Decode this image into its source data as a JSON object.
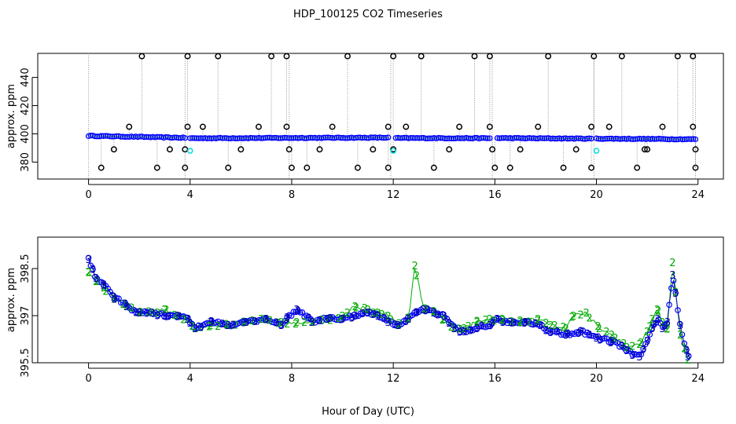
{
  "title": "HDP_100125  CO2 Timeseries",
  "xlabel": "Hour of Day (UTC)",
  "colors": {
    "blue": "#0000ff",
    "green": "#00aa00",
    "cyan": "#00dddd",
    "black": "#000000",
    "grey": "#999999",
    "dark_blue": "#0000aa"
  },
  "chart_data": [
    {
      "type": "scatter",
      "name": "top-panel",
      "ylabel": "approx. ppm",
      "xlim": [
        -2,
        25
      ],
      "ylim": [
        368,
        457
      ],
      "xticks": [
        0,
        4,
        8,
        12,
        16,
        20,
        24
      ],
      "yticks": [
        380,
        400,
        420,
        440
      ],
      "calibration_high": {
        "value": 455,
        "x": [
          2.1,
          3.9,
          5.1,
          7.2,
          7.8,
          10.2,
          12.0,
          13.1,
          15.2,
          15.8,
          18.1,
          19.9,
          21.0,
          23.2,
          23.8
        ]
      },
      "calibration_mid": {
        "value": 405,
        "x": [
          1.6,
          3.9,
          4.5,
          6.7,
          7.8,
          9.6,
          11.8,
          12.5,
          14.6,
          15.8,
          17.7,
          19.8,
          20.5,
          22.6,
          23.8
        ]
      },
      "calibration_low1": {
        "value": 389,
        "x": [
          1.0,
          3.2,
          3.8,
          6.0,
          7.9,
          9.1,
          11.2,
          12.0,
          14.2,
          15.9,
          17.0,
          19.2,
          21.9,
          22.0,
          23.9
        ]
      },
      "calibration_low2": {
        "value": 376,
        "x": [
          0.5,
          2.7,
          3.8,
          5.5,
          8.0,
          8.6,
          10.6,
          11.8,
          13.6,
          16.0,
          16.6,
          18.7,
          19.8,
          21.6,
          23.9
        ]
      },
      "cyan_points": [
        {
          "x": 4.0,
          "y": 388
        },
        {
          "x": 12.0,
          "y": 388
        },
        {
          "x": 20.0,
          "y": 388
        }
      ],
      "segments": [
        {
          "x": [
            0.0,
            3.8
          ],
          "y": [
            398.6,
            397.2
          ]
        },
        {
          "x": [
            4.0,
            11.8
          ],
          "y": [
            396.9,
            397.3
          ]
        },
        {
          "x": [
            12.1,
            15.8
          ],
          "y": [
            397.0,
            396.9
          ]
        },
        {
          "x": [
            16.1,
            19.8
          ],
          "y": [
            397.0,
            396.6
          ]
        },
        {
          "x": [
            20.0,
            23.9
          ],
          "y": [
            396.6,
            396.2
          ]
        }
      ]
    },
    {
      "type": "line",
      "name": "bottom-panel",
      "ylabel": "approx. ppm",
      "xlim": [
        -2,
        25
      ],
      "ylim": [
        395.5,
        399.5
      ],
      "xticks": [
        0,
        4,
        8,
        12,
        16,
        20,
        24
      ],
      "yticks": [
        395.5,
        397.0,
        398.5
      ],
      "series": [
        {
          "name": "2",
          "x": [
            0.0,
            0.3,
            0.6,
            1.0,
            1.5,
            2.0,
            2.5,
            3.0,
            3.5,
            3.9,
            4.2,
            4.8,
            5.5,
            6.2,
            7.0,
            7.6,
            8.2,
            8.8,
            9.4,
            10.0,
            10.5,
            11.0,
            11.4,
            11.8,
            12.2,
            12.6,
            12.85,
            13.2,
            13.6,
            14.0,
            14.4,
            14.8,
            15.3,
            15.8,
            16.3,
            17.0,
            17.7,
            18.2,
            18.8,
            19.1,
            19.6,
            20.1,
            20.6,
            21.2,
            21.7,
            22.0,
            22.2,
            22.4,
            22.6,
            22.8,
            23.0,
            23.3,
            23.6
          ],
          "y": [
            398.4,
            398.1,
            397.9,
            397.6,
            397.3,
            397.1,
            397.1,
            397.2,
            397.0,
            396.9,
            396.6,
            396.7,
            396.7,
            396.8,
            396.9,
            396.8,
            396.8,
            396.8,
            396.9,
            397.0,
            397.3,
            397.2,
            397.1,
            397.0,
            396.7,
            396.9,
            398.6,
            397.2,
            397.1,
            396.9,
            396.6,
            396.6,
            396.8,
            396.9,
            396.9,
            396.8,
            396.9,
            396.7,
            396.6,
            397.0,
            397.1,
            396.6,
            396.4,
            396.0,
            396.1,
            396.5,
            396.9,
            397.2,
            396.8,
            396.6,
            398.7,
            396.4,
            395.6
          ]
        },
        {
          "name": "3",
          "x": [
            0.0,
            0.3,
            0.6,
            1.0,
            1.5,
            2.0,
            2.5,
            3.0,
            3.5,
            3.9,
            4.2,
            4.8,
            5.5,
            6.2,
            7.0,
            7.6,
            7.8,
            8.2,
            8.8,
            9.4,
            10.0,
            10.5,
            11.0,
            11.4,
            11.8,
            12.2,
            12.6,
            12.9,
            13.2,
            13.6,
            14.0,
            14.4,
            14.8,
            15.3,
            15.8,
            16.1,
            16.6,
            17.2,
            17.8,
            18.2,
            18.8,
            19.4,
            20.0,
            20.6,
            21.2,
            21.7,
            22.0,
            22.2,
            22.4,
            22.6,
            22.8,
            23.0,
            23.3,
            23.6
          ],
          "y": [
            398.8,
            398.2,
            398.0,
            397.6,
            397.3,
            397.1,
            397.1,
            397.0,
            397.0,
            396.9,
            396.6,
            396.8,
            396.7,
            396.8,
            396.9,
            396.7,
            396.9,
            397.2,
            396.8,
            396.9,
            396.9,
            397.0,
            397.1,
            397.0,
            396.8,
            396.7,
            396.9,
            397.1,
            397.2,
            397.1,
            397.0,
            396.6,
            396.5,
            396.6,
            396.7,
            396.9,
            396.8,
            396.8,
            396.7,
            396.5,
            396.4,
            396.5,
            396.3,
            396.2,
            395.9,
            395.7,
            396.2,
            396.6,
            396.9,
            396.6,
            396.8,
            398.3,
            396.7,
            395.7
          ]
        }
      ]
    }
  ]
}
